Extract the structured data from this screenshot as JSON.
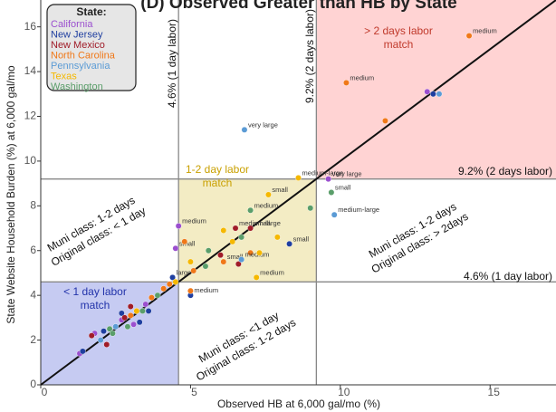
{
  "chart_data": {
    "type": "scatter",
    "title": "(D) Observed Greater than HB by State",
    "x_label": "Observed HB at 6,000 gal/mo (%)",
    "y_label": "State Website Household Burden (%) at 6,000 gal/mo",
    "xlim": [
      0,
      17.2
    ],
    "ylim": [
      0,
      17.2
    ],
    "xticks": [
      0,
      5,
      10,
      15
    ],
    "yticks": [
      0,
      2,
      4,
      6,
      8,
      10,
      12,
      14,
      16
    ],
    "thresholds": [
      4.6,
      9.2
    ],
    "region_colors": [
      "#b3b9ee",
      "#efe6b0",
      "#ffc4c4"
    ],
    "legend_title": "State:",
    "legend_position": "upper left",
    "annotations": [
      "> 2 days labor",
      "match",
      "1-2 day labor",
      "match",
      "< 1 day labor",
      "match",
      "4.6% (1 day labor)",
      "9.2% (2 days labor)",
      "9.2% (2 days labor)",
      "4.6% (1 day labor)",
      "Muni class: 1-2 days",
      "Original class: < 1 day",
      "Muni class: 1-2 days",
      "Original class: > 2days",
      "Muni class: <1 day",
      "Original class: 1-2 days"
    ],
    "series": [
      {
        "name": "California",
        "color": "#9b4fcf",
        "x": [
          12.9,
          9.6,
          4.6,
          4.5,
          1.3,
          1.8,
          2.7,
          3.5,
          3.1
        ],
        "values": [
          13.1,
          9.2,
          7.1,
          6.1,
          1.4,
          2.3,
          2.9,
          3.6,
          2.7
        ],
        "point_labels": [
          null,
          "very large",
          "medium",
          "small",
          null,
          null,
          null,
          null,
          null
        ]
      },
      {
        "name": "New Jersey",
        "color": "#1f3fa0",
        "x": [
          13.1,
          8.3,
          4.4,
          5.0,
          1.4,
          2.1,
          2.7,
          3.3,
          3.6
        ],
        "values": [
          13.0,
          6.3,
          4.8,
          4.0,
          1.5,
          2.4,
          3.2,
          2.8,
          3.3
        ],
        "point_labels": [
          null,
          "small",
          "large",
          "medium",
          null,
          null,
          null,
          null,
          null
        ]
      },
      {
        "name": "New Mexico",
        "color": "#a01c28",
        "x": [
          6.5,
          7.0,
          6.0,
          6.6,
          1.7,
          2.8,
          3.0,
          2.2
        ],
        "values": [
          7.0,
          7.0,
          5.8,
          5.4,
          2.2,
          3.0,
          3.5,
          1.8
        ],
        "point_labels": [
          "medium-large",
          "small",
          null,
          null,
          null,
          null,
          null,
          null
        ]
      },
      {
        "name": "North Carolina",
        "color": "#f07818",
        "x": [
          14.3,
          10.2,
          11.5,
          4.8,
          6.1,
          7.0,
          5.1,
          5.0,
          4.1,
          4.3,
          3.0,
          3.7
        ],
        "values": [
          15.6,
          13.5,
          11.8,
          6.4,
          5.5,
          5.9,
          5.1,
          4.2,
          4.3,
          4.5,
          3.1,
          3.9
        ],
        "point_labels": [
          "medium",
          "medium",
          null,
          null,
          "small",
          null,
          null,
          null,
          null,
          null,
          null,
          null
        ]
      },
      {
        "name": "Pennsylvania",
        "color": "#5b9bd5",
        "x": [
          13.3,
          6.8,
          9.8,
          6.7,
          2.5,
          2.0
        ],
        "values": [
          13.0,
          11.4,
          7.6,
          5.6,
          2.6,
          2.0
        ],
        "point_labels": [
          null,
          "very large",
          "medium-large",
          "medium",
          null,
          null
        ]
      },
      {
        "name": "Texas",
        "color": "#f5b800",
        "x": [
          8.6,
          7.6,
          6.1,
          6.4,
          7.9,
          7.3,
          5.0,
          7.2,
          4.5,
          3.2
        ],
        "values": [
          9.25,
          8.5,
          6.9,
          6.4,
          6.6,
          5.9,
          5.5,
          4.8,
          4.6,
          3.3
        ],
        "point_labels": [
          "medium-large",
          "small",
          null,
          null,
          null,
          null,
          null,
          "medium",
          null,
          null
        ]
      },
      {
        "name": "Washington",
        "color": "#5a9e6a",
        "x": [
          9.7,
          9.0,
          7.0,
          6.7,
          5.6,
          5.5,
          3.9,
          2.3,
          3.4,
          2.4,
          2.9
        ],
        "values": [
          8.6,
          7.9,
          7.8,
          6.6,
          6.0,
          5.3,
          4.0,
          2.5,
          3.3,
          2.3,
          2.6
        ],
        "point_labels": [
          "small",
          null,
          "medium",
          null,
          null,
          null,
          null,
          null,
          null,
          null,
          null
        ]
      }
    ]
  }
}
